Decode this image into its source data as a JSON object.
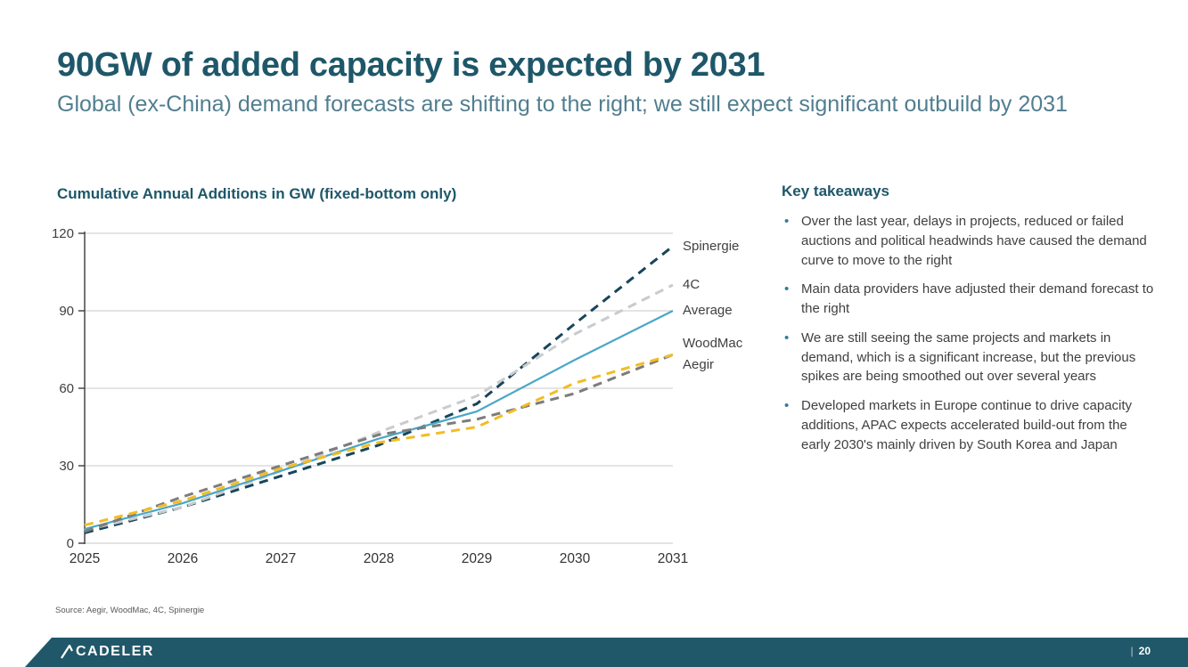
{
  "header": {
    "title": "90GW of added capacity is expected by 2031",
    "subtitle": "Global (ex-China) demand forecasts are shifting to the right; we still expect significant outbuild by 2031"
  },
  "chart_data": {
    "type": "line",
    "title": "Cumulative Annual Additions in GW (fixed-bottom only)",
    "x": [
      2025,
      2026,
      2027,
      2028,
      2029,
      2030,
      2031
    ],
    "series": [
      {
        "name": "Spinergie",
        "color": "#17455a",
        "dash": true,
        "values": [
          4,
          14,
          26,
          38,
          54,
          85,
          115
        ]
      },
      {
        "name": "4C",
        "color": "#c9cbcd",
        "dash": true,
        "values": [
          5,
          14,
          28,
          43,
          57,
          81,
          100
        ]
      },
      {
        "name": "Average",
        "color": "#4ba7c6",
        "dash": false,
        "values": [
          5.5,
          15.5,
          28,
          40.5,
          51,
          71,
          90
        ]
      },
      {
        "name": "WoodMac",
        "color": "#7c7c7c",
        "dash": true,
        "values": [
          4.5,
          18,
          30,
          42,
          48,
          58,
          73
        ]
      },
      {
        "name": "Aegir",
        "color": "#f2bc24",
        "dash": true,
        "values": [
          7,
          16.5,
          29,
          39,
          45,
          62,
          73
        ]
      }
    ],
    "ylim": [
      0,
      120
    ],
    "yticks": [
      0,
      30,
      60,
      90,
      120
    ],
    "xlabel": "",
    "ylabel": "",
    "grid": true,
    "legend_position": "right-end-labels"
  },
  "takeaways": {
    "title": "Key takeaways",
    "items": [
      "Over the last year, delays in projects, reduced or failed auctions and political headwinds have caused the demand curve to move to the right",
      "Main data providers have adjusted their demand forecast to the right",
      "We are still seeing the same projects and markets in demand, which is a significant increase, but the previous spikes are being smoothed out over several years",
      "Developed markets in Europe continue to drive capacity additions, APAC expects accelerated build-out from the early 2030's mainly driven by South Korea and Japan"
    ]
  },
  "source": "Source: Aegir, WoodMac, 4C, Spinergie",
  "footer": {
    "logo": "CADELER",
    "separator": "|",
    "page": "20"
  },
  "colors": {
    "accent_teal": "#1e5769",
    "footer_bar": "#20586a",
    "bullet": "#2f7d99",
    "gridline": "#c8c8c8",
    "axis": "#3a3a3a"
  }
}
